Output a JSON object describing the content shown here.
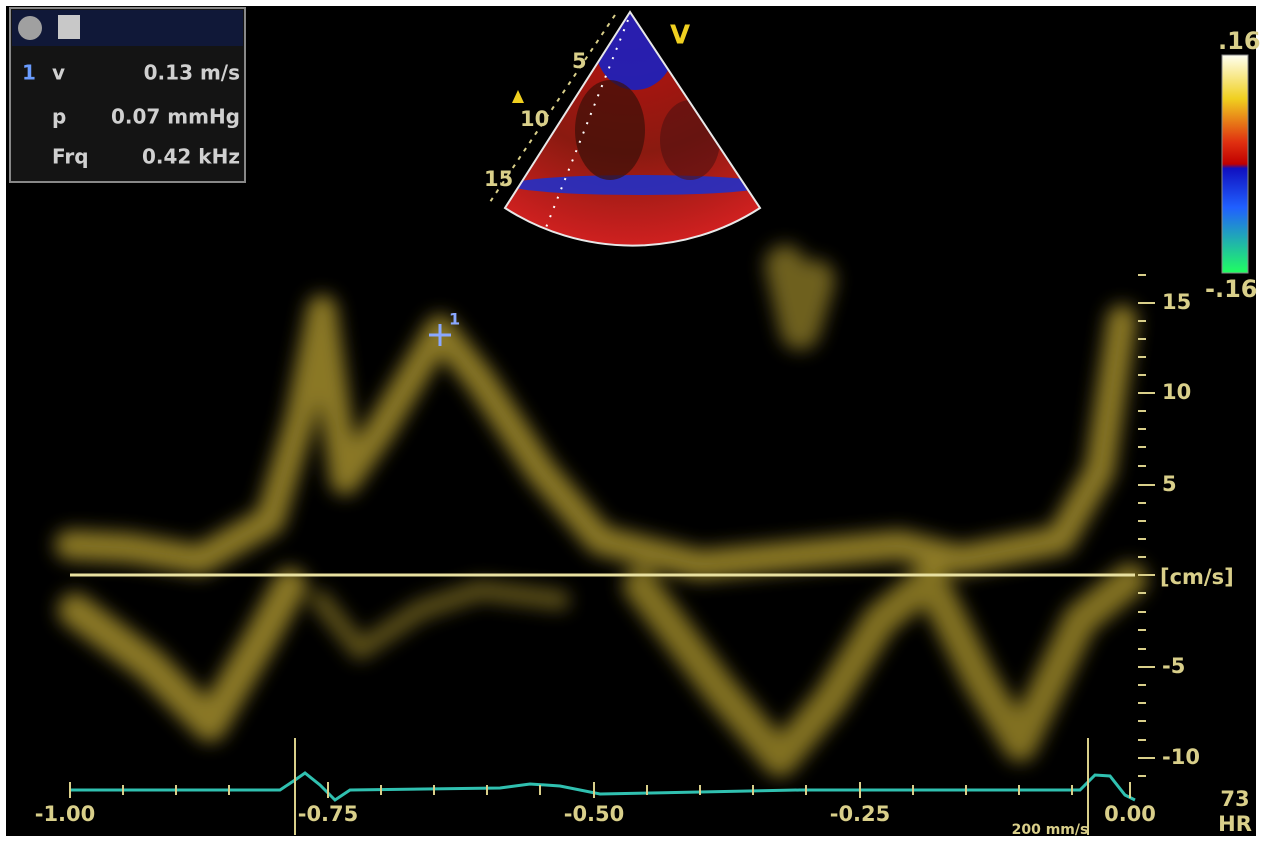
{
  "info_panel": {
    "index": "1",
    "rows": [
      {
        "label": "v",
        "value": "0.13 m/s"
      },
      {
        "label": "p",
        "value": "0.07 mmHg"
      },
      {
        "label": "Frq",
        "value": "0.42 kHz"
      }
    ]
  },
  "sector": {
    "mode": "V",
    "depth_labels": [
      "5",
      "10",
      "15"
    ]
  },
  "color_scale": {
    "max": ".16",
    "min": "-.16"
  },
  "velocity_axis": {
    "labels": [
      "15",
      "10",
      "5",
      "-5",
      "-10"
    ],
    "unit": "[cm/s]"
  },
  "time_axis": {
    "labels": [
      "-1.00",
      "-0.75",
      "-0.50",
      "-0.25",
      "0.00"
    ]
  },
  "cursor": {
    "label": "1"
  },
  "sweep_speed": "200 mm/s",
  "heart_rate": {
    "value": "73",
    "label": "HR"
  }
}
